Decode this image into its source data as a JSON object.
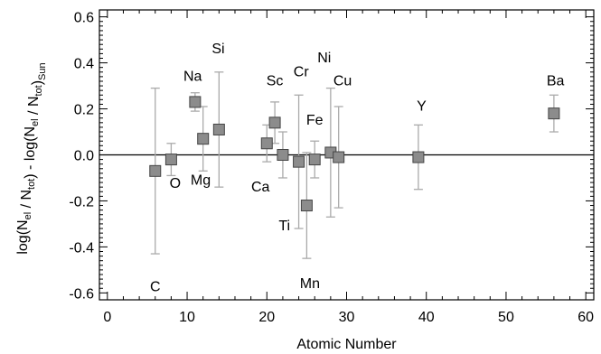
{
  "chart_data": {
    "type": "scatter",
    "xlabel": "Atomic Number",
    "ylabel": {
      "parts": [
        {
          "t": "log(N",
          "s": ""
        },
        {
          "t": "el",
          "s": "sub"
        },
        {
          "t": " / N",
          "s": ""
        },
        {
          "t": "tot",
          "s": "sub"
        },
        {
          "t": ") - log(N",
          "s": ""
        },
        {
          "t": "el",
          "s": "sub"
        },
        {
          "t": " / N",
          "s": ""
        },
        {
          "t": "tot",
          "s": "sub"
        },
        {
          "t": ")",
          "s": ""
        },
        {
          "t": "Sun",
          "s": "sub"
        }
      ]
    },
    "xlim": [
      -1,
      61
    ],
    "ylim": [
      -0.63,
      0.63
    ],
    "xticks": [
      0,
      10,
      20,
      30,
      40,
      50,
      60
    ],
    "xtick_labels": [
      "0",
      "10",
      "20",
      "30",
      "40",
      "50",
      "60"
    ],
    "yticks": [
      -0.6,
      -0.4,
      -0.2,
      0.0,
      0.2,
      0.4,
      0.6
    ],
    "ytick_labels": [
      "-0.6",
      "-0.4",
      "-0.2",
      "0.0",
      "0.2",
      "0.4",
      "0.6"
    ],
    "reference_line_y": 0.0,
    "marker_color": "#8c8c8c",
    "errorbar_color": "#aaaaaa",
    "points": [
      {
        "element": "C",
        "z": 6,
        "y": -0.07,
        "err_low": 0.36,
        "err_high": 0.36,
        "label_pos": [
          6,
          -0.57
        ]
      },
      {
        "element": "O",
        "z": 8,
        "y": -0.02,
        "err_low": 0.07,
        "err_high": 0.07,
        "label_pos": [
          8.5,
          -0.12
        ]
      },
      {
        "element": "Na",
        "z": 11,
        "y": 0.23,
        "err_low": 0.04,
        "err_high": 0.04,
        "label_pos": [
          10.7,
          0.345
        ]
      },
      {
        "element": "Mg",
        "z": 12,
        "y": 0.07,
        "err_low": 0.14,
        "err_high": 0.14,
        "label_pos": [
          11.7,
          -0.105
        ]
      },
      {
        "element": "Si",
        "z": 14,
        "y": 0.11,
        "err_low": 0.25,
        "err_high": 0.25,
        "label_pos": [
          13.9,
          0.465
        ]
      },
      {
        "element": "Sc",
        "z": 21,
        "y": 0.14,
        "err_low": 0.09,
        "err_high": 0.09,
        "label_pos": [
          21,
          0.325
        ]
      },
      {
        "element": "Ca",
        "z": 20,
        "y": 0.05,
        "err_low": 0.08,
        "err_high": 0.08,
        "label_pos": [
          19.2,
          -0.135
        ]
      },
      {
        "element": "Ti",
        "z": 22,
        "y": 0.0,
        "err_low": 0.1,
        "err_high": 0.1,
        "label_pos": [
          22.2,
          -0.305
        ]
      },
      {
        "element": "Cr",
        "z": 24,
        "y": -0.03,
        "err_low": 0.29,
        "err_high": 0.29,
        "label_pos": [
          24.3,
          0.365
        ]
      },
      {
        "element": "Mn",
        "z": 25,
        "y": -0.22,
        "err_low": 0.23,
        "err_high": 0.23,
        "label_pos": [
          25.4,
          -0.555
        ]
      },
      {
        "element": "Fe",
        "z": 26,
        "y": -0.02,
        "err_low": 0.08,
        "err_high": 0.08,
        "label_pos": [
          26,
          0.155
        ]
      },
      {
        "element": "Ni",
        "z": 28,
        "y": 0.01,
        "err_low": 0.28,
        "err_high": 0.28,
        "label_pos": [
          27.2,
          0.425
        ]
      },
      {
        "element": "Cu",
        "z": 29,
        "y": -0.01,
        "err_low": 0.22,
        "err_high": 0.22,
        "label_pos": [
          29.5,
          0.325
        ]
      },
      {
        "element": "Y",
        "z": 39,
        "y": -0.01,
        "err_low": 0.14,
        "err_high": 0.14,
        "label_pos": [
          39.4,
          0.215
        ]
      },
      {
        "element": "Ba",
        "z": 56,
        "y": 0.18,
        "err_low": 0.08,
        "err_high": 0.08,
        "label_pos": [
          56.2,
          0.325
        ]
      }
    ]
  }
}
